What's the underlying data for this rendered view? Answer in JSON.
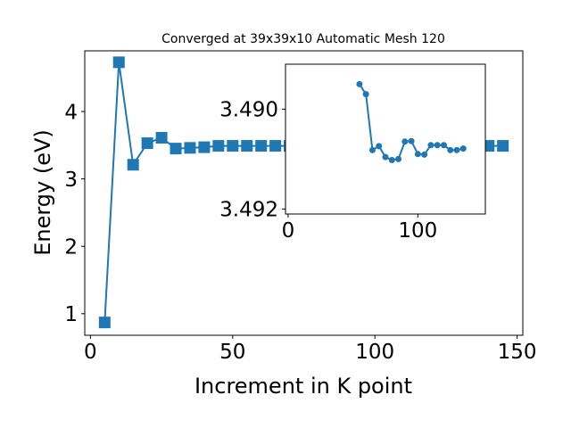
{
  "chart_data": [
    {
      "type": "line",
      "title": "Converged at 39x39x10 Automatic Mesh 120",
      "xlabel": "Increment in K point",
      "ylabel": "Energy (eV)",
      "xlim": [
        -2,
        152
      ],
      "ylim": [
        0.68,
        4.9
      ],
      "xticks": [
        0,
        50,
        100,
        150
      ],
      "yticks": [
        1,
        2,
        3,
        4
      ],
      "grid": false,
      "marker": "square",
      "color": "#1f77b4",
      "series": [
        {
          "x": [
            5,
            10,
            15,
            20,
            25,
            30,
            35,
            40,
            45,
            50,
            55,
            60,
            65,
            70,
            75,
            80,
            85,
            90,
            95,
            100,
            105,
            110,
            115,
            120,
            125,
            130,
            135,
            140,
            145
          ],
          "y": [
            0.87,
            4.73,
            3.21,
            3.53,
            3.61,
            3.45,
            3.46,
            3.47,
            3.49,
            3.49,
            3.49,
            3.49,
            3.49,
            3.49,
            3.49,
            3.49,
            3.49,
            3.49,
            3.49,
            3.49,
            3.49,
            3.49,
            3.49,
            3.49,
            3.49,
            3.49,
            3.49,
            3.49,
            3.49
          ]
        }
      ]
    },
    {
      "type": "line",
      "title": "",
      "xlabel": "",
      "ylabel": "",
      "xlim": [
        -2,
        152
      ],
      "ylim": [
        3.4921,
        3.4891
      ],
      "y_inverted": true,
      "xticks": [
        0,
        100
      ],
      "yticks": [
        3.49,
        3.492
      ],
      "ytick_labels": [
        "3.490",
        "3.492"
      ],
      "grid": false,
      "marker": "circle",
      "color": "#1f77b4",
      "series": [
        {
          "x": [
            55,
            60,
            65,
            70,
            75,
            80,
            85,
            90,
            95,
            100,
            105,
            110,
            115,
            120,
            125,
            130,
            135
          ],
          "y": [
            3.4895,
            3.4897,
            3.49082,
            3.49074,
            3.49096,
            3.49102,
            3.491,
            3.49065,
            3.49064,
            3.4909,
            3.49091,
            3.49072,
            3.49072,
            3.49072,
            3.49082,
            3.49082,
            3.49079
          ]
        }
      ]
    }
  ]
}
